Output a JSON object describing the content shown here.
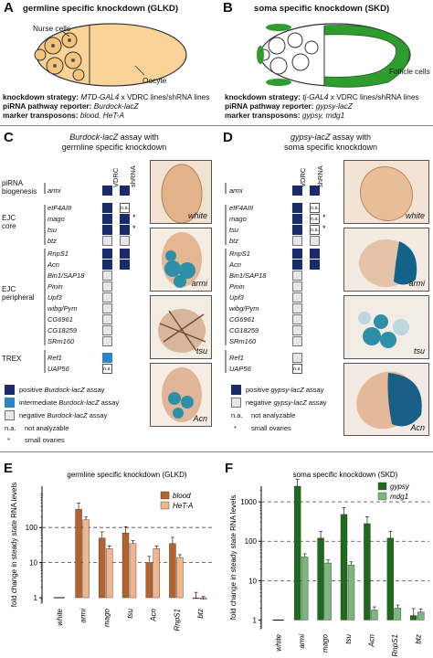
{
  "panelA": {
    "letter": "A",
    "title": "germline specific knockdown (GLKD)",
    "labels": {
      "nurse": "Nurse cells",
      "oocyte": "Oocyte"
    },
    "strategy_label": "knockdown strategy:",
    "strategy_value": "MTD-GAL4",
    "strategy_rest": " x VDRC lines/shRNA lines",
    "reporter_label": "piRNA pathway reporter:",
    "reporter_value": "Burdock-lacZ",
    "marker_label": "marker transposons:",
    "marker_value": "blood, HeT-A"
  },
  "panelB": {
    "letter": "B",
    "title": "soma specific knockdown (SKD)",
    "labels": {
      "follicle": "Follicle cells"
    },
    "strategy_label": "knockdown strategy:",
    "strategy_value": "tj-GAL4",
    "strategy_rest": " x VDRC lines/shRNA lines",
    "reporter_label": "piRNA pathway reporter:",
    "reporter_value": "gypsy-lacZ",
    "marker_label": "marker transposons:",
    "marker_value": "gypsy, mdg1"
  },
  "panelC": {
    "letter": "C",
    "title_italic": "Burdock-lacZ",
    "title_rest": " assay with",
    "title_line2": "germline specific knockdown",
    "col1": "VDRC",
    "col2": "shRNA",
    "categories": [
      "piRNA biogenesis",
      "EJC core",
      "EJC peripheral",
      "TREX"
    ],
    "genes": [
      "armi",
      "eIF4AIII",
      "mago",
      "tsu",
      "btz",
      "RnpS1",
      "Acn",
      "Bin1/SAP18",
      "Pinin",
      "Upf3",
      "wibg/Pym",
      "CG6961",
      "CG18259",
      "SRm160",
      "Ref1",
      "UAP56"
    ],
    "photos": [
      "white",
      "armi",
      "tsu",
      "Acn"
    ],
    "legend": {
      "pos_a": "positive ",
      "pos_i": "Burdock-lacZ",
      "pos_b": " assay",
      "int_a": "intermediate ",
      "int_i": "Burdock-lacZ",
      "int_b": " assay",
      "neg_a": "negative ",
      "neg_i": "Burdock-lacZ",
      "neg_b": " assay",
      "na_key": "n.a.",
      "na": "not analyzable",
      "star_key": "*",
      "star": "small ovaries"
    }
  },
  "panelD": {
    "letter": "D",
    "title_italic": "gypsy-lacZ",
    "title_rest": " assay with",
    "title_line2": "soma specific knockdown",
    "col1": "VDRC",
    "col2": "shRNA",
    "genes": [
      "armi",
      "eIF4AIII",
      "mago",
      "tsu",
      "btz",
      "RnpS1",
      "Acn",
      "Bin1/SAP18",
      "Pinin",
      "Upf3",
      "wibg/Pym",
      "CG6961",
      "CG18259",
      "SRm160",
      "Ref1",
      "UAP56"
    ],
    "photos": [
      "white",
      "armi",
      "tsu",
      "Acn"
    ],
    "legend": {
      "pos_a": "positive ",
      "pos_i": "gypsy-lacZ",
      "pos_b": " assay",
      "neg_a": "negative ",
      "neg_i": "gypsy-lacZ",
      "neg_b": " assay",
      "na_key": "n.a.",
      "na": "not analyzable",
      "star_key": "*",
      "star": "small ovaries"
    }
  },
  "panelE": {
    "letter": "E"
  },
  "panelF": {
    "letter": "F"
  },
  "chart_data": [
    {
      "type": "bar",
      "title": "germline specific knockdown (GLKD)",
      "ylabel": "fold change in steady state RNA levels",
      "yscale": "log",
      "ylim": [
        0.7,
        1500
      ],
      "yticks": [
        "1",
        "10",
        "100"
      ],
      "dashed_gridlines": [
        10,
        100
      ],
      "categories": [
        "white",
        "armi",
        "mago",
        "tsu",
        "Acn",
        "RnpS1",
        "btz"
      ],
      "series": [
        {
          "name": "blood",
          "color": "#b5622d",
          "values": [
            1,
            330,
            50,
            70,
            10,
            35,
            0.95
          ]
        },
        {
          "name": "HeT-A",
          "color": "#f0b58e",
          "values": [
            1,
            165,
            25,
            35,
            25,
            14,
            0.9
          ]
        }
      ]
    },
    {
      "type": "bar",
      "title": "soma specific knockdown (SKD)",
      "ylabel": "fold change in steady state RNA levels",
      "yscale": "log",
      "ylim": [
        0.6,
        2500
      ],
      "yticks": [
        "1",
        "10",
        "100",
        "1000"
      ],
      "dashed_gridlines": [
        10,
        100,
        1000
      ],
      "categories": [
        "white",
        "armi",
        "mago",
        "tsu",
        "Acn",
        "RnpS1",
        "btz"
      ],
      "series": [
        {
          "name": "gypsy",
          "color": "#1e6b1e",
          "values": [
            1,
            2500,
            120,
            480,
            280,
            120,
            1.3
          ]
        },
        {
          "name": "mdg1",
          "color": "#7cb87c",
          "values": [
            1,
            40,
            28,
            25,
            1.8,
            2,
            1.6
          ]
        }
      ]
    }
  ]
}
